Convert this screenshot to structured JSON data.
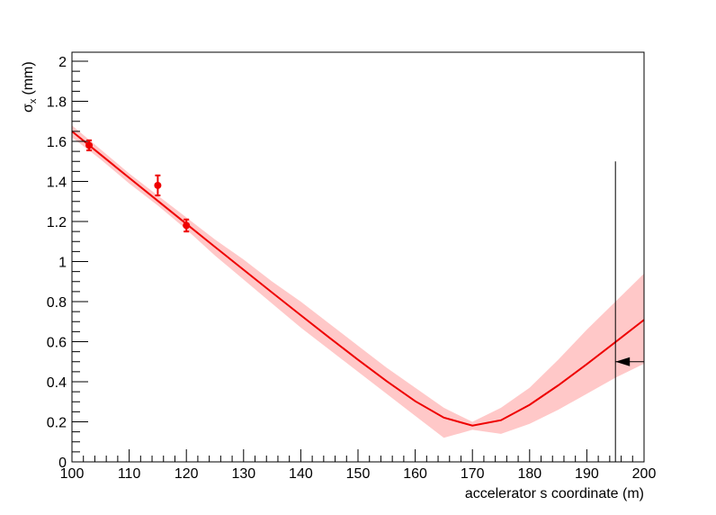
{
  "chart_data": {
    "type": "line",
    "ylabel": {
      "symbol": "σ",
      "sub": "x",
      "unit": "(mm)"
    },
    "xlabel": "accelerator s coordinate (m)",
    "xlim": [
      100,
      200
    ],
    "ylim": [
      0,
      2.045
    ],
    "xticks": [
      100,
      110,
      120,
      130,
      140,
      150,
      160,
      170,
      180,
      190,
      200
    ],
    "xminorticks": [
      102,
      104,
      106,
      108,
      112,
      114,
      116,
      118,
      122,
      124,
      126,
      128,
      132,
      134,
      136,
      138,
      142,
      144,
      146,
      148,
      152,
      154,
      156,
      158,
      162,
      164,
      166,
      168,
      172,
      174,
      176,
      178,
      182,
      184,
      186,
      188,
      192,
      194,
      196,
      198
    ],
    "yticks": [
      0,
      0.2,
      0.4,
      0.6,
      0.8,
      1,
      1.2,
      1.4,
      1.6,
      1.8,
      2
    ],
    "yminorticks": [
      0.05,
      0.1,
      0.15,
      0.25,
      0.3,
      0.35,
      0.45,
      0.5,
      0.55,
      0.65,
      0.7,
      0.75,
      0.85,
      0.9,
      0.95,
      1.05,
      1.1,
      1.15,
      1.25,
      1.3,
      1.35,
      1.45,
      1.5,
      1.55,
      1.65,
      1.7,
      1.75,
      1.85,
      1.9,
      1.95
    ],
    "fit": {
      "color": "#ee0000",
      "band_color": "#ffc8c8",
      "x": [
        100,
        105,
        110,
        115,
        120,
        125,
        130,
        135,
        140,
        145,
        150,
        155,
        160,
        165,
        170,
        175,
        180,
        185,
        190,
        195,
        200
      ],
      "values": [
        1.65,
        1.534,
        1.418,
        1.303,
        1.188,
        1.073,
        0.959,
        0.845,
        0.732,
        0.62,
        0.51,
        0.403,
        0.303,
        0.221,
        0.181,
        0.208,
        0.285,
        0.382,
        0.488,
        0.598,
        0.709
      ],
      "lower": [
        1.62,
        1.51,
        1.39,
        1.28,
        1.16,
        1.03,
        0.91,
        0.79,
        0.67,
        0.56,
        0.45,
        0.34,
        0.23,
        0.12,
        0.16,
        0.14,
        0.19,
        0.26,
        0.34,
        0.42,
        0.49
      ],
      "upper": [
        1.68,
        1.56,
        1.44,
        1.33,
        1.22,
        1.11,
        1.01,
        0.9,
        0.8,
        0.69,
        0.58,
        0.47,
        0.37,
        0.27,
        0.2,
        0.27,
        0.37,
        0.51,
        0.66,
        0.8,
        0.94
      ]
    },
    "points": {
      "color": "#ee0000",
      "x": [
        103,
        115,
        120
      ],
      "values": [
        1.58,
        1.38,
        1.18
      ],
      "errors": [
        0.025,
        0.05,
        0.03
      ]
    },
    "marker": {
      "x": 195,
      "ymax": 1.5,
      "arrow_y": 0.5,
      "arrow_from": 200
    }
  }
}
